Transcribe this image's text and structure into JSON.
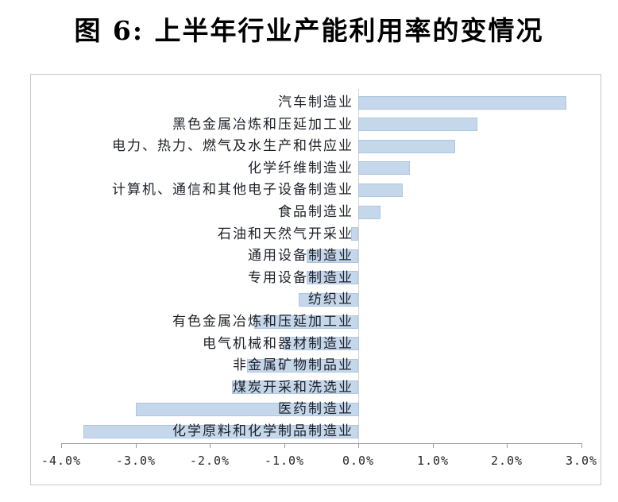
{
  "title": "图 6: 上半年行业产能利用率的变情况",
  "colors": {
    "bar_fill": "#c5d7eb",
    "bar_border": "#aec6e0",
    "axis_line": "#9a9a9a",
    "box_border": "#c8c8c8",
    "tick_text": "#262626",
    "label_text": "#1d1f27",
    "title_text": "#000000"
  },
  "chart_data": {
    "type": "bar",
    "orientation": "horizontal",
    "title": "图 6: 上半年行业产能利用率的变情况",
    "xlabel": "",
    "ylabel": "",
    "unit": "%",
    "xlim": [
      -4.0,
      3.0
    ],
    "grid": false,
    "legend": "none",
    "categories": [
      "汽车制造业",
      "黑色金属冶炼和压延加工业",
      "电力、热力、燃气及水生产和供应业",
      "化学纤维制造业",
      "计算机、通信和其他电子设备制造业",
      "食品制造业",
      "石油和天然气开采业",
      "通用设备制造业",
      "专用设备制造业",
      "纺织业",
      "有色金属冶炼和压延加工业",
      "电气机械和器材制造业",
      "非金属矿物制品业",
      "煤炭开采和洗选业",
      "医药制造业",
      "化学原料和化学制品制造业"
    ],
    "values": [
      2.8,
      1.6,
      1.3,
      0.7,
      0.6,
      0.3,
      -0.1,
      -0.7,
      -0.7,
      -0.8,
      -1.4,
      -1.0,
      -1.5,
      -1.7,
      -3.0,
      -3.7
    ],
    "x_tick_values": [
      -4,
      -3,
      -2,
      -1,
      0,
      1,
      2,
      3
    ],
    "x_tick_labels": [
      "-4.0%",
      "-3.0%",
      "-2.0%",
      "-1.0%",
      "0.0%",
      "1.0%",
      "2.0%",
      "3.0%"
    ]
  }
}
